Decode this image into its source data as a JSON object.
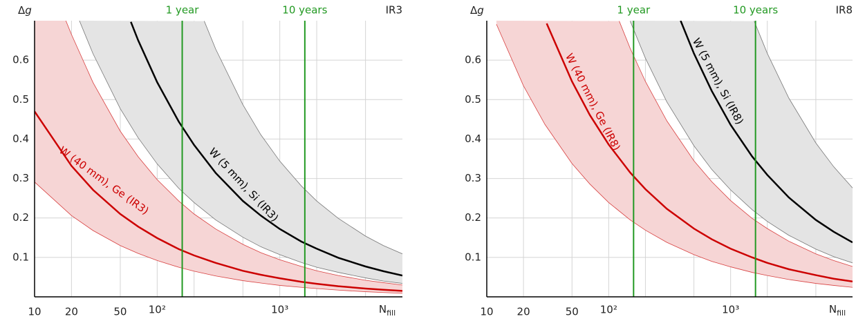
{
  "chart_data": [
    {
      "type": "line",
      "title": "IR3",
      "xlabel": {
        "text": "N",
        "subscript": "fill"
      },
      "ylabel": {
        "text": "Δ",
        "italic": "g"
      },
      "xscale": "log",
      "xlim": [
        10,
        10000
      ],
      "ylim": [
        0,
        0.7
      ],
      "xticks": [
        10,
        20,
        50,
        {
          "value": 100,
          "label": "10²"
        },
        {
          "value": 1000,
          "label": "10³"
        }
      ],
      "x_minor_ticks": [
        200,
        500,
        2000,
        5000
      ],
      "yticks": [
        0.1,
        0.2,
        0.3,
        0.4,
        0.5,
        0.6
      ],
      "grid": true,
      "annotations": [
        {
          "x": 160,
          "label": "1 year",
          "color": "#229922"
        },
        {
          "x": 1600,
          "label": "10 years",
          "color": "#229922"
        }
      ],
      "series": [
        {
          "name": "W (40 mm), Ge (IR3)",
          "color": "#cc0000",
          "x": [
            10,
            20,
            30,
            50,
            70,
            100,
            150,
            200,
            300,
            500,
            700,
            1000,
            1500,
            2000,
            3000,
            5000,
            7000,
            10000
          ],
          "values": [
            0.47,
            0.332,
            0.271,
            0.21,
            0.178,
            0.149,
            0.121,
            0.105,
            0.086,
            0.066,
            0.056,
            0.047,
            0.038,
            0.033,
            0.027,
            0.021,
            0.018,
            0.015
          ],
          "band": {
            "fill": "#f6d5d5",
            "edge": "#d84040",
            "lower": {
              "x": [
                10,
                20,
                30,
                50,
                70,
                100,
                150,
                200,
                300,
                500,
                700,
                1000,
                1500,
                2000,
                3000,
                5000,
                7000,
                10000
              ],
              "values": [
                0.291,
                0.206,
                0.168,
                0.13,
                0.11,
                0.092,
                0.075,
                0.065,
                0.053,
                0.041,
                0.035,
                0.029,
                0.024,
                0.021,
                0.017,
                0.013,
                0.011,
                0.009
              ]
            },
            "upper": {
              "x": [
                18,
                20,
                30,
                50,
                70,
                100,
                150,
                200,
                300,
                500,
                700,
                1000,
                1500,
                2000,
                3000,
                5000,
                7000,
                10000
              ],
              "values": [
                0.7,
                0.665,
                0.543,
                0.42,
                0.355,
                0.297,
                0.243,
                0.21,
                0.172,
                0.133,
                0.112,
                0.094,
                0.077,
                0.066,
                0.054,
                0.042,
                0.036,
                0.03
              ]
            }
          }
        },
        {
          "name": "W (5 mm), Si (IR3)",
          "color": "#000000",
          "x": [
            61,
            70,
            100,
            150,
            200,
            300,
            500,
            700,
            1000,
            1500,
            2000,
            3000,
            5000,
            7000,
            10000
          ],
          "values": [
            0.697,
            0.65,
            0.544,
            0.444,
            0.385,
            0.314,
            0.243,
            0.206,
            0.172,
            0.14,
            0.122,
            0.099,
            0.077,
            0.065,
            0.054
          ],
          "band": {
            "fill": "#e4e4e4",
            "edge": "#777777",
            "lower": {
              "x": [
                23,
                30,
                50,
                70,
                100,
                150,
                200,
                300,
                500,
                700,
                1000,
                1500,
                2000,
                3000,
                5000,
                7000,
                10000
              ],
              "values": [
                0.703,
                0.616,
                0.477,
                0.403,
                0.337,
                0.275,
                0.239,
                0.195,
                0.151,
                0.127,
                0.107,
                0.087,
                0.075,
                0.062,
                0.048,
                0.04,
                0.034
              ]
            },
            "upper": {
              "x": [
                242,
                300,
                500,
                700,
                1000,
                1500,
                2000,
                3000,
                5000,
                7000,
                10000
              ],
              "values": [
                0.699,
                0.628,
                0.487,
                0.411,
                0.344,
                0.281,
                0.243,
                0.199,
                0.154,
                0.13,
                0.109
              ]
            }
          }
        }
      ]
    },
    {
      "type": "line",
      "title": "IR8",
      "xlabel": {
        "text": "N",
        "subscript": "fill"
      },
      "ylabel": {
        "text": "Δ",
        "italic": "g"
      },
      "xscale": "log",
      "xlim": [
        10,
        10000
      ],
      "ylim": [
        0,
        0.7
      ],
      "xticks": [
        10,
        20,
        50,
        {
          "value": 100,
          "label": "10²"
        },
        {
          "value": 1000,
          "label": "10³"
        }
      ],
      "x_minor_ticks": [
        200,
        500,
        2000,
        5000
      ],
      "yticks": [
        0.1,
        0.2,
        0.3,
        0.4,
        0.5,
        0.6
      ],
      "grid": true,
      "annotations": [
        {
          "x": 160,
          "label": "1 year",
          "color": "#229922"
        },
        {
          "x": 1600,
          "label": "10 years",
          "color": "#229922"
        }
      ],
      "series": [
        {
          "name": "W (40 mm), Ge (IR8)",
          "color": "#cc0000",
          "x": [
            31,
            50,
            70,
            100,
            150,
            200,
            300,
            500,
            700,
            1000,
            1500,
            2000,
            3000,
            5000,
            7000,
            10000
          ],
          "values": [
            0.693,
            0.546,
            0.461,
            0.386,
            0.315,
            0.273,
            0.223,
            0.173,
            0.146,
            0.122,
            0.1,
            0.086,
            0.07,
            0.055,
            0.046,
            0.039
          ],
          "band": {
            "fill": "#f6d5d5",
            "edge": "#d84040",
            "lower": {
              "x": [
                12,
                20,
                30,
                50,
                70,
                100,
                150,
                200,
                300,
                500,
                700,
                1000,
                1500,
                2000,
                3000,
                5000,
                7000,
                10000
              ],
              "values": [
                0.691,
                0.535,
                0.437,
                0.338,
                0.286,
                0.239,
                0.195,
                0.169,
                0.138,
                0.107,
                0.09,
                0.076,
                0.062,
                0.054,
                0.044,
                0.034,
                0.029,
                0.024
              ]
            },
            "upper": {
              "x": [
                122,
                150,
                200,
                300,
                500,
                700,
                1000,
                1500,
                2000,
                3000,
                5000,
                7000,
                10000
              ],
              "values": [
                0.699,
                0.63,
                0.546,
                0.446,
                0.345,
                0.292,
                0.244,
                0.199,
                0.173,
                0.141,
                0.109,
                0.092,
                0.077
              ]
            }
          }
        },
        {
          "name": "W (5 mm), Si (IR8)",
          "color": "#000000",
          "x": [
            389,
            500,
            700,
            1000,
            1500,
            2000,
            3000,
            5000,
            7000,
            10000
          ],
          "values": [
            0.7,
            0.617,
            0.522,
            0.436,
            0.356,
            0.309,
            0.252,
            0.195,
            0.165,
            0.138
          ],
          "band": {
            "fill": "#e4e4e4",
            "edge": "#777777",
            "lower": {
              "x": [
                150,
                200,
                300,
                500,
                700,
                1000,
                1500,
                2000,
                3000,
                5000,
                7000,
                10000
              ],
              "values": [
                0.699,
                0.605,
                0.494,
                0.383,
                0.323,
                0.271,
                0.221,
                0.191,
                0.156,
                0.121,
                0.102,
                0.086
              ]
            },
            "upper": {
              "x": [
                1560,
                2000,
                3000,
                5000,
                7000,
                10000
              ],
              "values": [
                0.699,
                0.617,
                0.504,
                0.39,
                0.33,
                0.276
              ]
            }
          }
        }
      ]
    }
  ]
}
